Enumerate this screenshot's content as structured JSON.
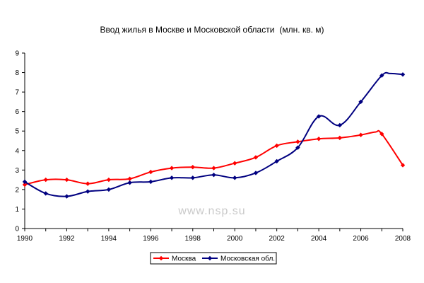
{
  "chart_data": {
    "type": "line",
    "title": "Ввод жилья в Москве и Московской области",
    "unit_label": "(млн. кв. м)",
    "watermark": "www.nsp.su",
    "x": [
      1990,
      1991,
      1992,
      1993,
      1994,
      1995,
      1996,
      1997,
      1998,
      1999,
      2000,
      2001,
      2002,
      2003,
      2004,
      2005,
      2006,
      2007,
      2008
    ],
    "x_ticks": [
      "1990",
      "1992",
      "1994",
      "1996",
      "1998",
      "2000",
      "2002",
      "2004",
      "2006",
      "2008"
    ],
    "y_ticks": [
      "0",
      "1",
      "2",
      "3",
      "4",
      "5",
      "6",
      "7",
      "8",
      "9"
    ],
    "xlim": [
      1990,
      2008
    ],
    "ylim": [
      0,
      9
    ],
    "grid": false,
    "legend_position": "bottom-center",
    "series": [
      {
        "name": "Москва",
        "color": "#ff0000",
        "marker": "diamond",
        "values": [
          2.25,
          2.5,
          2.5,
          2.3,
          2.5,
          2.55,
          2.9,
          3.1,
          3.15,
          3.1,
          3.35,
          3.65,
          4.25,
          4.45,
          4.6,
          4.65,
          4.8,
          4.85,
          3.25
        ]
      },
      {
        "name": "Московская обл.",
        "color": "#000080",
        "marker": "diamond",
        "values": [
          2.4,
          1.8,
          1.65,
          1.9,
          2.0,
          2.35,
          2.4,
          2.6,
          2.6,
          2.75,
          2.6,
          2.85,
          3.45,
          4.15,
          5.75,
          5.3,
          6.5,
          7.85,
          7.9
        ]
      }
    ],
    "line_points": {
      "Москва": [
        [
          1990,
          2.25
        ],
        [
          1991,
          2.5
        ],
        [
          1992,
          2.5
        ],
        [
          1993,
          2.3
        ],
        [
          1994,
          2.5
        ],
        [
          1995,
          2.55
        ],
        [
          1996,
          2.9
        ],
        [
          1997,
          3.1
        ],
        [
          1998,
          3.15
        ],
        [
          1999,
          3.1
        ],
        [
          2000,
          3.35
        ],
        [
          2001,
          3.65
        ],
        [
          2002,
          4.25
        ],
        [
          2003,
          4.45
        ],
        [
          2004,
          4.6
        ],
        [
          2005,
          4.65
        ],
        [
          2006,
          4.8
        ],
        [
          2006.7,
          4.95
        ],
        [
          2007,
          4.85
        ],
        [
          2008,
          3.25
        ]
      ],
      "Московская обл.": [
        [
          1990,
          2.4
        ],
        [
          1991,
          1.8
        ],
        [
          1992,
          1.65
        ],
        [
          1993,
          1.9
        ],
        [
          1994,
          2.0
        ],
        [
          1995,
          2.35
        ],
        [
          1996,
          2.4
        ],
        [
          1997,
          2.6
        ],
        [
          1998,
          2.6
        ],
        [
          1999,
          2.75
        ],
        [
          2000,
          2.6
        ],
        [
          2001,
          2.85
        ],
        [
          2002,
          3.45
        ],
        [
          2003,
          4.15
        ],
        [
          2004,
          5.75
        ],
        [
          2005,
          5.3
        ],
        [
          2006,
          6.5
        ],
        [
          2007,
          7.85
        ],
        [
          2007.4,
          7.95
        ],
        [
          2008,
          7.9
        ]
      ]
    }
  }
}
